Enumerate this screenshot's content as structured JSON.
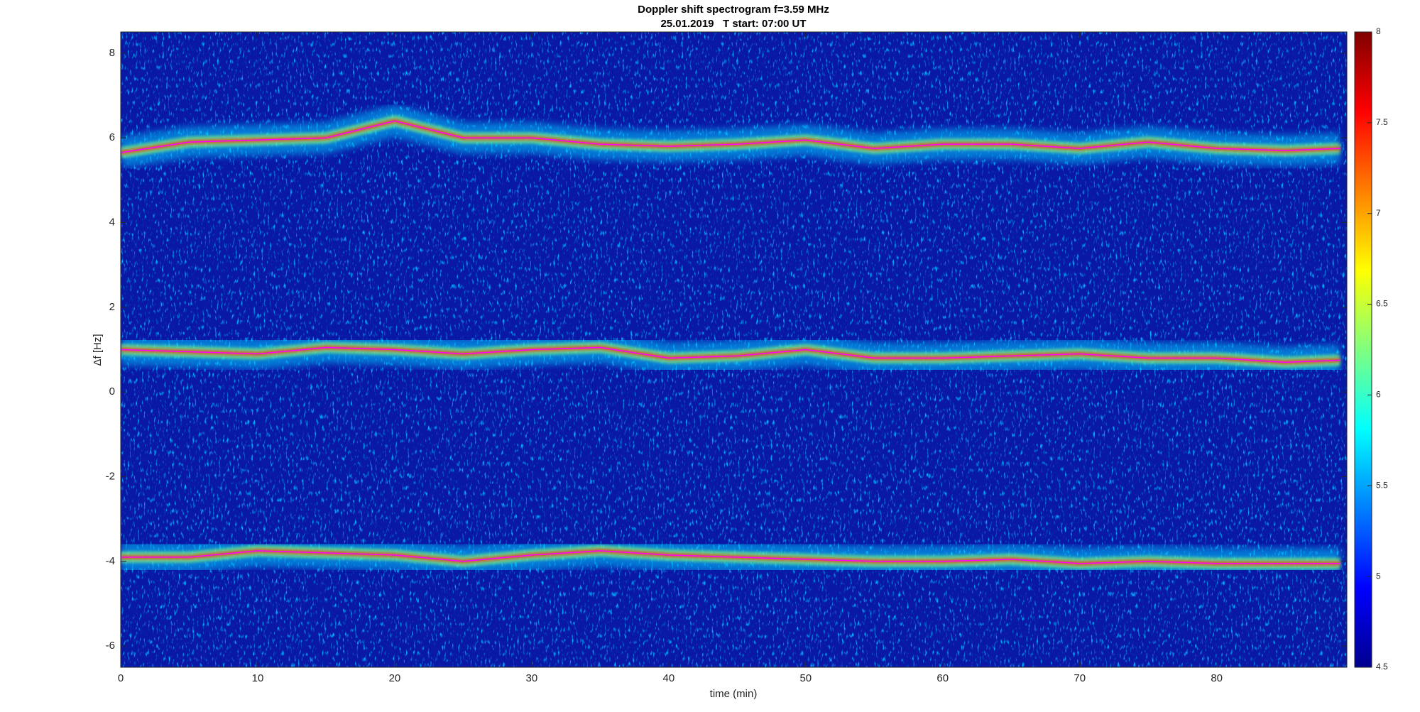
{
  "chart_data": {
    "type": "spectrogram",
    "title": "Doppler shift spectrogram f=3.59 MHz",
    "subtitle": "25.01.2019   T start: 07:00 UT",
    "x_label": "time (min)",
    "y_label": "Δf [Hz]",
    "xlim": [
      0,
      89.5
    ],
    "xticks": [
      0,
      10,
      20,
      30,
      40,
      50,
      60,
      70,
      80
    ],
    "ylim": [
      -6.5,
      8.5
    ],
    "yticks": [
      -6,
      -4,
      -2,
      0,
      2,
      4,
      6,
      8
    ],
    "x": [
      0,
      5,
      10,
      15,
      20,
      25,
      30,
      35,
      40,
      45,
      50,
      55,
      60,
      65,
      70,
      75,
      80,
      85,
      89
    ],
    "series": [
      {
        "color": "#ff00ff",
        "values": [
          5.65,
          5.9,
          5.95,
          6.0,
          6.4,
          6.0,
          6.0,
          5.85,
          5.8,
          5.85,
          5.95,
          5.75,
          5.85,
          5.85,
          5.75,
          5.9,
          5.75,
          5.7,
          5.75
        ]
      },
      {
        "color": "#ff00ff",
        "values": [
          1.0,
          0.95,
          0.9,
          1.05,
          1.0,
          0.9,
          1.0,
          1.05,
          0.8,
          0.85,
          1.0,
          0.8,
          0.8,
          0.85,
          0.9,
          0.8,
          0.8,
          0.7,
          0.75
        ]
      },
      {
        "color": "#ff00ff",
        "values": [
          -3.9,
          -3.9,
          -3.75,
          -3.8,
          -3.85,
          -4.0,
          -3.85,
          -3.75,
          -3.85,
          -3.9,
          -3.95,
          -4.0,
          -4.0,
          -3.95,
          -4.05,
          -4.0,
          -4.05,
          -4.05,
          -4.05
        ]
      }
    ],
    "colorbar": {
      "clim": [
        4.5,
        8
      ],
      "ticks": [
        4.5,
        5,
        5.5,
        6,
        6.5,
        7,
        7.5,
        8
      ]
    }
  }
}
